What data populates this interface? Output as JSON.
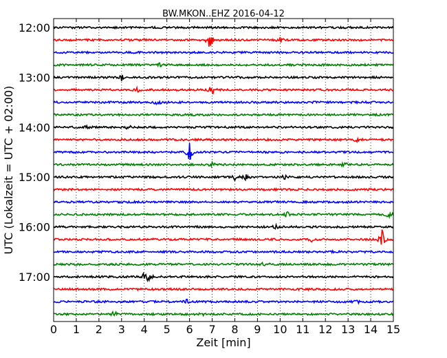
{
  "chart_data": {
    "type": "line",
    "title": "BW.MKON..EHZ 2016-04-12",
    "xlabel": "Zeit  [min]",
    "ylabel": "UTC (Lokalzeit = UTC + 02:00)",
    "xlim": [
      0,
      15
    ],
    "x_ticks": [
      "0",
      "1",
      "2",
      "3",
      "4",
      "5",
      "6",
      "7",
      "8",
      "9",
      "10",
      "11",
      "12",
      "13",
      "14",
      "15"
    ],
    "vertical_grid": "dotted",
    "rows_per_hour": 4,
    "minutes_per_row": 15,
    "y_ticks": [
      "12:00",
      "13:00",
      "14:00",
      "15:00",
      "16:00",
      "17:00"
    ],
    "row_colors": [
      "#000000",
      "#ff0000",
      "#0000ff",
      "#008000"
    ],
    "rows": [
      {
        "start": "12:00",
        "color": "#000000",
        "events": []
      },
      {
        "start": "12:15",
        "color": "#ff0000",
        "events": [
          {
            "t": 6.9,
            "amp": 1.0
          },
          {
            "t": 10.0,
            "amp": 0.25
          }
        ]
      },
      {
        "start": "12:30",
        "color": "#0000ff",
        "events": []
      },
      {
        "start": "12:45",
        "color": "#008000",
        "events": [
          {
            "t": 4.7,
            "amp": 0.2
          }
        ]
      },
      {
        "start": "13:00",
        "color": "#000000",
        "events": [
          {
            "t": 3.0,
            "amp": 0.3
          }
        ]
      },
      {
        "start": "13:15",
        "color": "#ff0000",
        "events": [
          {
            "t": 3.7,
            "amp": 0.25
          },
          {
            "t": 7.0,
            "amp": 0.8
          }
        ]
      },
      {
        "start": "13:30",
        "color": "#0000ff",
        "events": [
          {
            "t": 4.6,
            "amp": 0.3
          }
        ]
      },
      {
        "start": "13:45",
        "color": "#008000",
        "events": []
      },
      {
        "start": "14:00",
        "color": "#000000",
        "events": [
          {
            "t": 1.5,
            "amp": 0.3
          },
          {
            "t": 3.3,
            "amp": 0.25
          }
        ]
      },
      {
        "start": "14:15",
        "color": "#ff0000",
        "events": [
          {
            "t": 13.4,
            "amp": 0.2
          }
        ]
      },
      {
        "start": "14:30",
        "color": "#0000ff",
        "events": [
          {
            "t": 6.0,
            "amp": 1.2
          }
        ]
      },
      {
        "start": "14:45",
        "color": "#008000",
        "events": [
          {
            "t": 7.0,
            "amp": 0.3
          },
          {
            "t": 12.8,
            "amp": 0.3
          }
        ]
      },
      {
        "start": "15:00",
        "color": "#000000",
        "events": [
          {
            "t": 8.0,
            "amp": 0.3
          },
          {
            "t": 8.5,
            "amp": 0.35
          },
          {
            "t": 10.2,
            "amp": 0.3
          }
        ]
      },
      {
        "start": "15:15",
        "color": "#ff0000",
        "events": []
      },
      {
        "start": "15:30",
        "color": "#0000ff",
        "events": []
      },
      {
        "start": "15:45",
        "color": "#008000",
        "events": [
          {
            "t": 10.3,
            "amp": 0.3
          },
          {
            "t": 14.8,
            "amp": 0.35
          }
        ]
      },
      {
        "start": "16:00",
        "color": "#000000",
        "events": [
          {
            "t": 9.8,
            "amp": 0.2
          }
        ]
      },
      {
        "start": "16:15",
        "color": "#ff0000",
        "events": [
          {
            "t": 11.4,
            "amp": 0.2
          },
          {
            "t": 14.5,
            "amp": 1.0
          }
        ]
      },
      {
        "start": "16:30",
        "color": "#0000ff",
        "events": [
          {
            "t": 12.4,
            "amp": 0.2
          }
        ]
      },
      {
        "start": "16:45",
        "color": "#008000",
        "events": [
          {
            "t": 9.3,
            "amp": 0.35
          }
        ]
      },
      {
        "start": "17:00",
        "color": "#000000",
        "events": [
          {
            "t": 4.0,
            "amp": 0.4
          },
          {
            "t": 4.2,
            "amp": 0.5
          }
        ]
      },
      {
        "start": "17:15",
        "color": "#ff0000",
        "events": []
      },
      {
        "start": "17:30",
        "color": "#0000ff",
        "events": [
          {
            "t": 5.9,
            "amp": 0.25
          },
          {
            "t": 13.4,
            "amp": 0.2
          }
        ]
      },
      {
        "start": "17:45",
        "color": "#008000",
        "events": [
          {
            "t": 2.7,
            "amp": 0.6
          },
          {
            "t": 6.6,
            "amp": 0.2
          }
        ]
      }
    ]
  }
}
